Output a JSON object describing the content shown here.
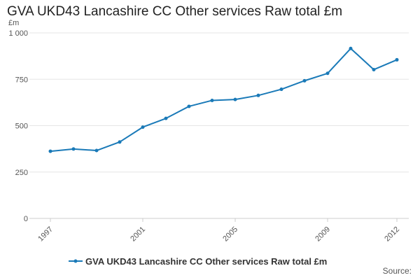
{
  "chart_data": {
    "type": "line",
    "title": "GVA UKD43 Lancashire CC Other services Raw total £m",
    "ylabel": "£m",
    "xlabel": "",
    "x": [
      1997,
      1998,
      1999,
      2000,
      2001,
      2002,
      2003,
      2004,
      2005,
      2006,
      2007,
      2008,
      2009,
      2010,
      2011,
      2012
    ],
    "x_ticks": [
      1997,
      2001,
      2005,
      2009,
      2012
    ],
    "y_ticks": [
      0,
      250,
      500,
      750,
      1000
    ],
    "y_tick_labels": [
      "0",
      "250",
      "500",
      "750",
      "1 000"
    ],
    "ylim": [
      0,
      1000
    ],
    "grid": true,
    "legend_position": "bottom",
    "series": [
      {
        "name": "GVA UKD43 Lancashire CC Other services Raw total £m",
        "color": "#1a7ab8",
        "values": [
          362,
          374,
          366,
          412,
          492,
          539,
          604,
          636,
          641,
          663,
          696,
          742,
          782,
          916,
          802,
          855
        ]
      }
    ]
  },
  "footer": {
    "source": "Source:"
  }
}
